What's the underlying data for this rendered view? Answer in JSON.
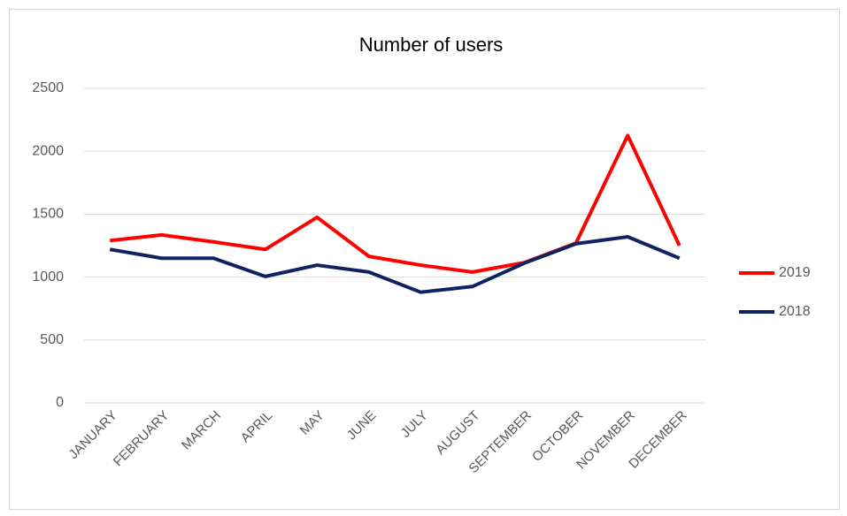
{
  "chart_data": {
    "type": "line",
    "title": "Number of users",
    "categories": [
      "JANUARY",
      "FEBRUARY",
      "MARCH",
      "APRIL",
      "MAY",
      "JUNE",
      "JULY",
      "AUGUST",
      "SEPTEMBER",
      "OCTOBER",
      "NOVEMBER",
      "DECEMBER"
    ],
    "series": [
      {
        "name": "2019",
        "color": "#ff0000",
        "values": [
          1290,
          1335,
          1280,
          1220,
          1475,
          1165,
          1095,
          1040,
          1115,
          1270,
          2125,
          1250
        ]
      },
      {
        "name": "2018",
        "color": "#0d2461",
        "values": [
          1220,
          1150,
          1150,
          1005,
          1095,
          1040,
          880,
          925,
          1110,
          1265,
          1320,
          1150
        ]
      }
    ],
    "ylim": [
      0,
      2500
    ],
    "yticks": [
      0,
      500,
      1000,
      1500,
      2000,
      2500
    ],
    "grid": true,
    "legend": "right"
  }
}
